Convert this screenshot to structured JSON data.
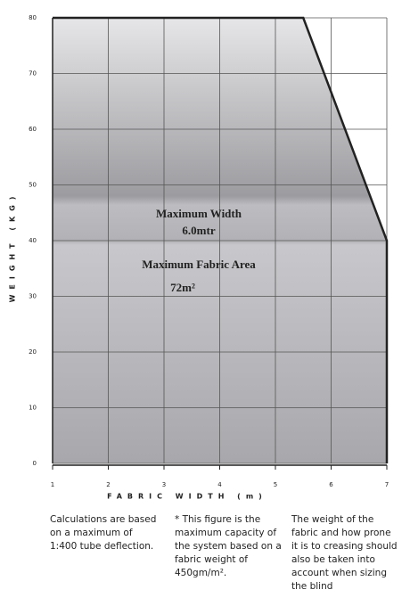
{
  "chart_data": {
    "type": "area",
    "x": [
      1,
      5.5,
      7,
      7
    ],
    "values": [
      80,
      80,
      40,
      0
    ],
    "xlim": [
      1,
      7
    ],
    "xticks": [
      1,
      2,
      3,
      4,
      5,
      6,
      7
    ],
    "ylim": [
      0,
      80
    ],
    "yticks": [
      0,
      10,
      20,
      30,
      40,
      50,
      60,
      70,
      80
    ],
    "xlabel": "FABRIC WIDTH (m)",
    "ylabel": "WEIGHT (KG)",
    "grid": true,
    "color": "#222222",
    "annotations": [
      "Maximum Width",
      "6.0mtr",
      "Maximum Fabric Area",
      "72m²"
    ]
  },
  "notes": [
    "Calculations are based on a maximum of 1:400 tube deflection.",
    "* This figure is the maximum capacity of the system based on a fabric weight of 450gm/m².",
    "The weight of the fabric and how prone it is to creasing should also be taken into account when sizing the blind"
  ]
}
